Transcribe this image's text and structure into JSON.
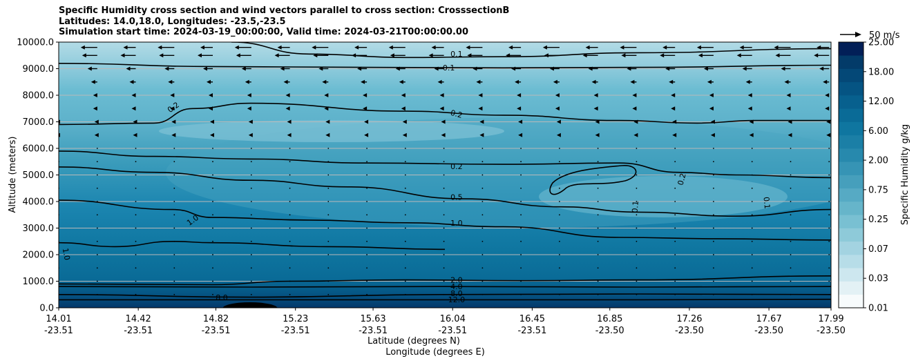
{
  "chart_data": {
    "type": "contourf",
    "title_lines": [
      "Specific Humidity cross section and wind vectors parallel to cross section: CrosssectionB",
      "Latitudes: 14.0,18.0, Longitudes: -23.5,-23.5",
      "Simulation start time: 2024-03-19_00:00:00, Valid time: 2024-03-21T00:00:00.00"
    ],
    "ylabel": "Altitude (meters)",
    "xlabel_lat": "Latitude (degrees N)",
    "xlabel_lon": "Longitude (degrees E)",
    "ylim": [
      0,
      10000
    ],
    "y_ticks": [
      "0.0",
      "1000.0",
      "2000.0",
      "3000.0",
      "4000.0",
      "5000.0",
      "6000.0",
      "7000.0",
      "8000.0",
      "9000.0",
      "10000.0"
    ],
    "x_range": [
      14.01,
      17.99
    ],
    "x_ticks": [
      {
        "lat": "14.01",
        "lon": "-23.51"
      },
      {
        "lat": "14.42",
        "lon": "-23.51"
      },
      {
        "lat": "14.82",
        "lon": "-23.51"
      },
      {
        "lat": "15.23",
        "lon": "-23.51"
      },
      {
        "lat": "15.63",
        "lon": "-23.51"
      },
      {
        "lat": "16.04",
        "lon": "-23.51"
      },
      {
        "lat": "16.45",
        "lon": "-23.51"
      },
      {
        "lat": "16.85",
        "lon": "-23.50"
      },
      {
        "lat": "17.26",
        "lon": "-23.50"
      },
      {
        "lat": "17.67",
        "lon": "-23.50"
      },
      {
        "lat": "17.99",
        "lon": "-23.50"
      }
    ],
    "colorbar": {
      "label": "Specific Humidity g/kg",
      "tick_labels": [
        "0.01",
        "0.03",
        "0.07",
        "0.25",
        "0.75",
        "2.00",
        "6.00",
        "12.00",
        "18.00",
        "25.00"
      ],
      "ticks_labeled": [
        "0.01",
        "0.03",
        "0.07",
        "0.25",
        "0.75",
        "2.00",
        "6.00",
        "12.00",
        "18.00",
        "25.00"
      ],
      "levels_count": 20,
      "colors": [
        "#f7fbfc",
        "#e3f1f5",
        "#cde7ef",
        "#b7dde8",
        "#a3d3e1",
        "#8ecad9",
        "#79c0d2",
        "#66b5ca",
        "#56aac4",
        "#469fbc",
        "#3694b5",
        "#2789ad",
        "#1b7fa6",
        "#0f76a0",
        "#0a6b97",
        "#07608e",
        "#055483",
        "#044877",
        "#033b69",
        "#021f57"
      ]
    },
    "wind_reference": {
      "label": "50 m/s",
      "speed": 50
    },
    "contour_lines": [
      {
        "label": "0.1",
        "level": 0.1
      },
      {
        "label": "0.2",
        "level": 0.2
      },
      {
        "label": "0.5",
        "level": 0.5
      },
      {
        "label": "1.0",
        "level": 1.0
      },
      {
        "label": "2.0",
        "level": 2.0
      },
      {
        "label": "4.0",
        "level": 4.0
      },
      {
        "label": "8.0",
        "level": 8.0
      },
      {
        "label": "12.0",
        "level": 12.0
      }
    ],
    "contour_label_texts": [
      "0.1",
      "0.1",
      "0.2",
      "0.2",
      "0.2",
      "0.2",
      "0.5",
      "1.0",
      "1.0",
      "1.0",
      "0.1",
      "0.1",
      "2.0",
      "4.0",
      "8.0",
      "8.0",
      "12.0"
    ],
    "contour_lines_data": [
      {
        "level": 0.1,
        "points": [
          [
            14.01,
            9200
          ],
          [
            14.8,
            9080
          ],
          [
            15.6,
            9050
          ],
          [
            16.3,
            9030
          ],
          [
            17.0,
            9050
          ],
          [
            17.99,
            9130
          ]
        ]
      },
      {
        "level": 0.1,
        "points": [
          [
            14.9,
            10000
          ],
          [
            15.3,
            9550
          ],
          [
            15.8,
            9420
          ],
          [
            16.3,
            9450
          ],
          [
            17.0,
            9600
          ],
          [
            17.99,
            9750
          ]
        ]
      },
      {
        "level": 0.2,
        "points": [
          [
            14.01,
            6900
          ],
          [
            14.5,
            6950
          ],
          [
            14.7,
            7500
          ],
          [
            15.0,
            7700
          ],
          [
            15.8,
            7400
          ],
          [
            16.3,
            7250
          ],
          [
            16.9,
            7050
          ],
          [
            17.3,
            6950
          ],
          [
            17.6,
            7050
          ],
          [
            17.99,
            7050
          ]
        ]
      },
      {
        "level": 0.2,
        "points": [
          [
            14.01,
            5900
          ],
          [
            14.5,
            5700
          ],
          [
            15.0,
            5600
          ],
          [
            15.6,
            5450
          ],
          [
            16.3,
            5400
          ],
          [
            16.9,
            5450
          ],
          [
            17.2,
            5100
          ],
          [
            17.5,
            5000
          ],
          [
            17.99,
            4900
          ]
        ]
      },
      {
        "level": 0.5,
        "points": [
          [
            14.01,
            5300
          ],
          [
            14.5,
            5100
          ],
          [
            15.0,
            4800
          ],
          [
            15.5,
            4550
          ],
          [
            16.1,
            4100
          ],
          [
            16.6,
            3800
          ],
          [
            17.0,
            3600
          ],
          [
            17.5,
            3450
          ],
          [
            17.99,
            3700
          ]
        ]
      },
      {
        "level": 1.0,
        "points": [
          [
            14.01,
            4050
          ],
          [
            14.6,
            3700
          ],
          [
            14.8,
            3400
          ],
          [
            15.3,
            3300
          ],
          [
            15.8,
            3200
          ],
          [
            16.3,
            3050
          ],
          [
            16.9,
            2650
          ],
          [
            17.4,
            2600
          ],
          [
            17.99,
            2550
          ]
        ]
      },
      {
        "level": 1.0,
        "points": [
          [
            14.01,
            2450
          ],
          [
            14.3,
            2300
          ],
          [
            14.6,
            2500
          ],
          [
            14.8,
            2450
          ],
          [
            15.4,
            2300
          ],
          [
            16.0,
            2200
          ]
        ]
      },
      {
        "level": 2.0,
        "points": [
          [
            14.01,
            900
          ],
          [
            14.8,
            870
          ],
          [
            15.2,
            1000
          ],
          [
            15.8,
            1050
          ],
          [
            16.4,
            1020
          ],
          [
            17.0,
            1050
          ],
          [
            17.99,
            1200
          ]
        ]
      },
      {
        "level": 4.0,
        "points": [
          [
            14.01,
            800
          ],
          [
            15.0,
            780
          ],
          [
            16.0,
            800
          ],
          [
            17.0,
            780
          ],
          [
            17.99,
            800
          ]
        ]
      },
      {
        "level": 8.0,
        "points": [
          [
            14.01,
            500
          ],
          [
            15.0,
            400
          ],
          [
            16.0,
            500
          ],
          [
            17.0,
            520
          ],
          [
            17.99,
            500
          ]
        ]
      },
      {
        "level": 12.0,
        "points": [
          [
            14.01,
            300
          ],
          [
            15.0,
            300
          ],
          [
            16.0,
            300
          ],
          [
            17.0,
            300
          ],
          [
            17.99,
            320
          ]
        ]
      }
    ]
  }
}
